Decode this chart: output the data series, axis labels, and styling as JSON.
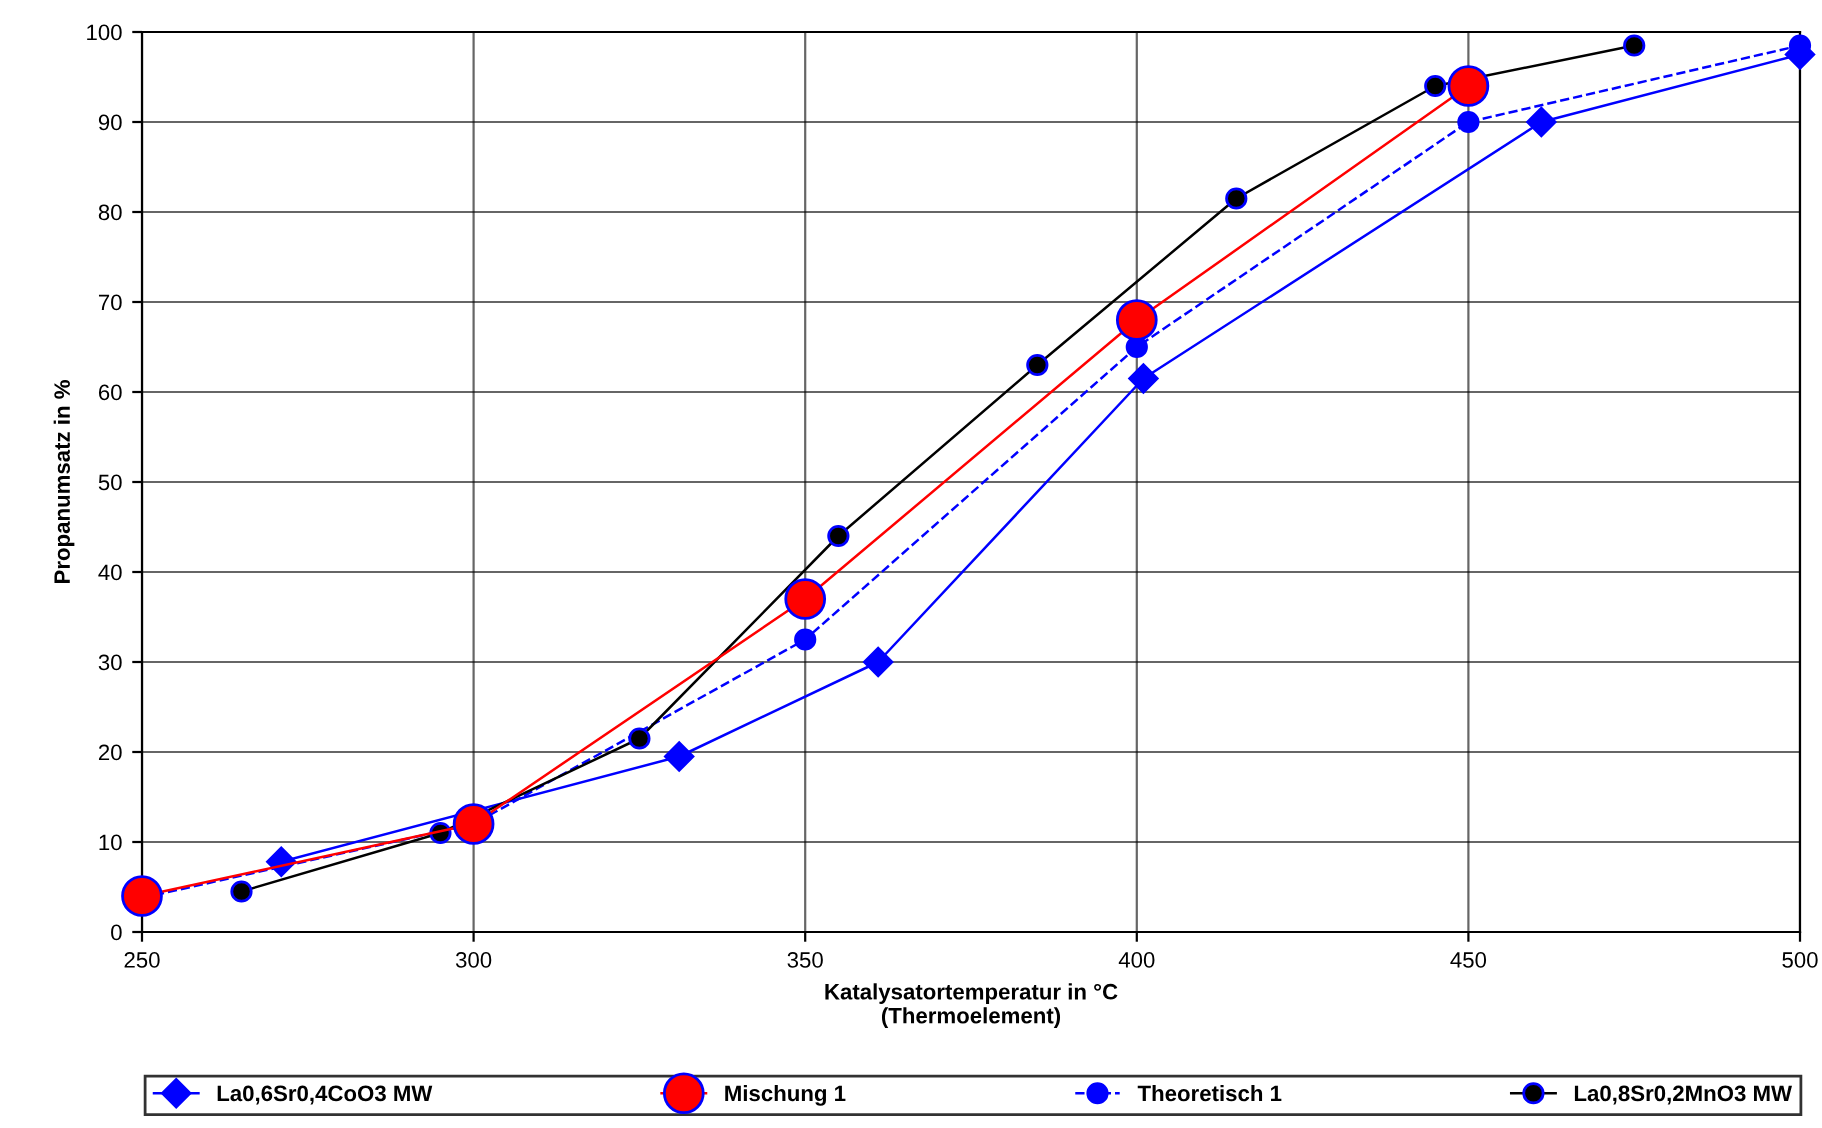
{
  "chart_data": {
    "type": "line",
    "xlabel": "Katalysatortemperatur in °C\n(Thermoelement)",
    "ylabel": "Propanumsatz in %",
    "xlim": [
      250,
      500
    ],
    "xticks": [
      250,
      300,
      350,
      400,
      450,
      500
    ],
    "ylim": [
      0,
      100
    ],
    "yticks": [
      0,
      10,
      20,
      30,
      40,
      50,
      60,
      70,
      80,
      90,
      100
    ],
    "grid": true,
    "legend": "bottom",
    "series": [
      {
        "name": "La0,6Sr0,4CoO3 MW",
        "color": "#0000ff",
        "marker": "diamond",
        "line_style": "solid",
        "x": [
          271,
          331,
          361,
          401,
          461,
          500
        ],
        "values": [
          7.8,
          19.5,
          30,
          61.5,
          90,
          97.5
        ]
      },
      {
        "name": "Mischung 1",
        "color": "#ff0000",
        "marker": "circle",
        "line_style": "solid",
        "x": [
          250,
          300,
          350,
          400,
          450
        ],
        "values": [
          4,
          12,
          37,
          68,
          94
        ]
      },
      {
        "name": "Theoretisch 1",
        "color": "#0000ff",
        "marker": "circle",
        "line_style": "dashed",
        "x": [
          250,
          300,
          350,
          400,
          450,
          500
        ],
        "values": [
          3.8,
          12,
          32.5,
          65,
          90,
          98.5
        ]
      },
      {
        "name": "La0,8Sr0,2MnO3 MW",
        "color": "#000000",
        "marker": "circle",
        "line_style": "solid",
        "x": [
          265,
          295,
          325,
          355,
          385,
          415,
          445,
          475
        ],
        "values": [
          4.5,
          11,
          21.5,
          44,
          63,
          81.5,
          94,
          98.5
        ]
      }
    ]
  }
}
